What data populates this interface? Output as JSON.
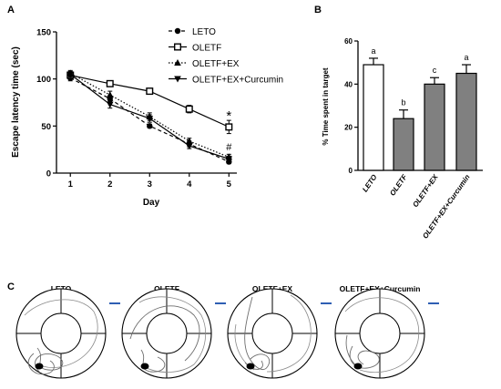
{
  "panel_labels": {
    "a": "A",
    "b": "B",
    "c": "C"
  },
  "chart_data": [
    {
      "type": "line",
      "panel": "A",
      "xlabel": "Day",
      "ylabel": "Escape latency time (sec)",
      "x": [
        1,
        2,
        3,
        4,
        5
      ],
      "xlim": [
        0.65,
        5.2
      ],
      "ylim": [
        0,
        150
      ],
      "yticks": [
        0,
        50,
        100,
        150
      ],
      "legend_position": "top-right",
      "series": [
        {
          "name": "LETO",
          "values": [
            101,
            79,
            50,
            31,
            12
          ],
          "err": [
            3,
            3,
            2,
            3,
            2
          ],
          "marker": "circle-filled",
          "line": "dashed"
        },
        {
          "name": "OLETF",
          "values": [
            104,
            95,
            87,
            68,
            49
          ],
          "err": [
            3,
            3,
            3,
            4,
            7
          ],
          "marker": "square-open",
          "line": "solid"
        },
        {
          "name": "OLETF+EX",
          "values": [
            106,
            83,
            60,
            34,
            17
          ],
          "err": [
            3,
            4,
            4,
            3,
            3
          ],
          "marker": "triangle-filled",
          "line": "dotted"
        },
        {
          "name": "OLETF+EX+Curcumin",
          "values": [
            105,
            73,
            58,
            29,
            15
          ],
          "err": [
            3,
            4,
            4,
            3,
            3
          ],
          "marker": "triangle-down-filled",
          "line": "solid"
        }
      ],
      "annotations": [
        {
          "text": "*",
          "x": 5,
          "y": 64
        },
        {
          "text": "#",
          "x": 5,
          "y": 28
        }
      ]
    },
    {
      "type": "bar",
      "panel": "B",
      "ylabel": "% Time spent in target",
      "ylim": [
        0,
        60
      ],
      "yticks": [
        0,
        20,
        40,
        60
      ],
      "categories": [
        "LETO",
        "OLETF",
        "OLETF+EX",
        "OLETF+EX+Curcumin"
      ],
      "values": [
        49,
        24,
        40,
        45
      ],
      "err": [
        3,
        4,
        3,
        4
      ],
      "bar_colors": [
        "#ffffff",
        "#808080",
        "#808080",
        "#808080"
      ],
      "letters": [
        "a",
        "b",
        "c",
        "a"
      ]
    }
  ],
  "panel_c": {
    "titles": [
      "LETO",
      "OLETF",
      "OLETF+EX",
      "OLETF+EX+Curcumin"
    ]
  }
}
